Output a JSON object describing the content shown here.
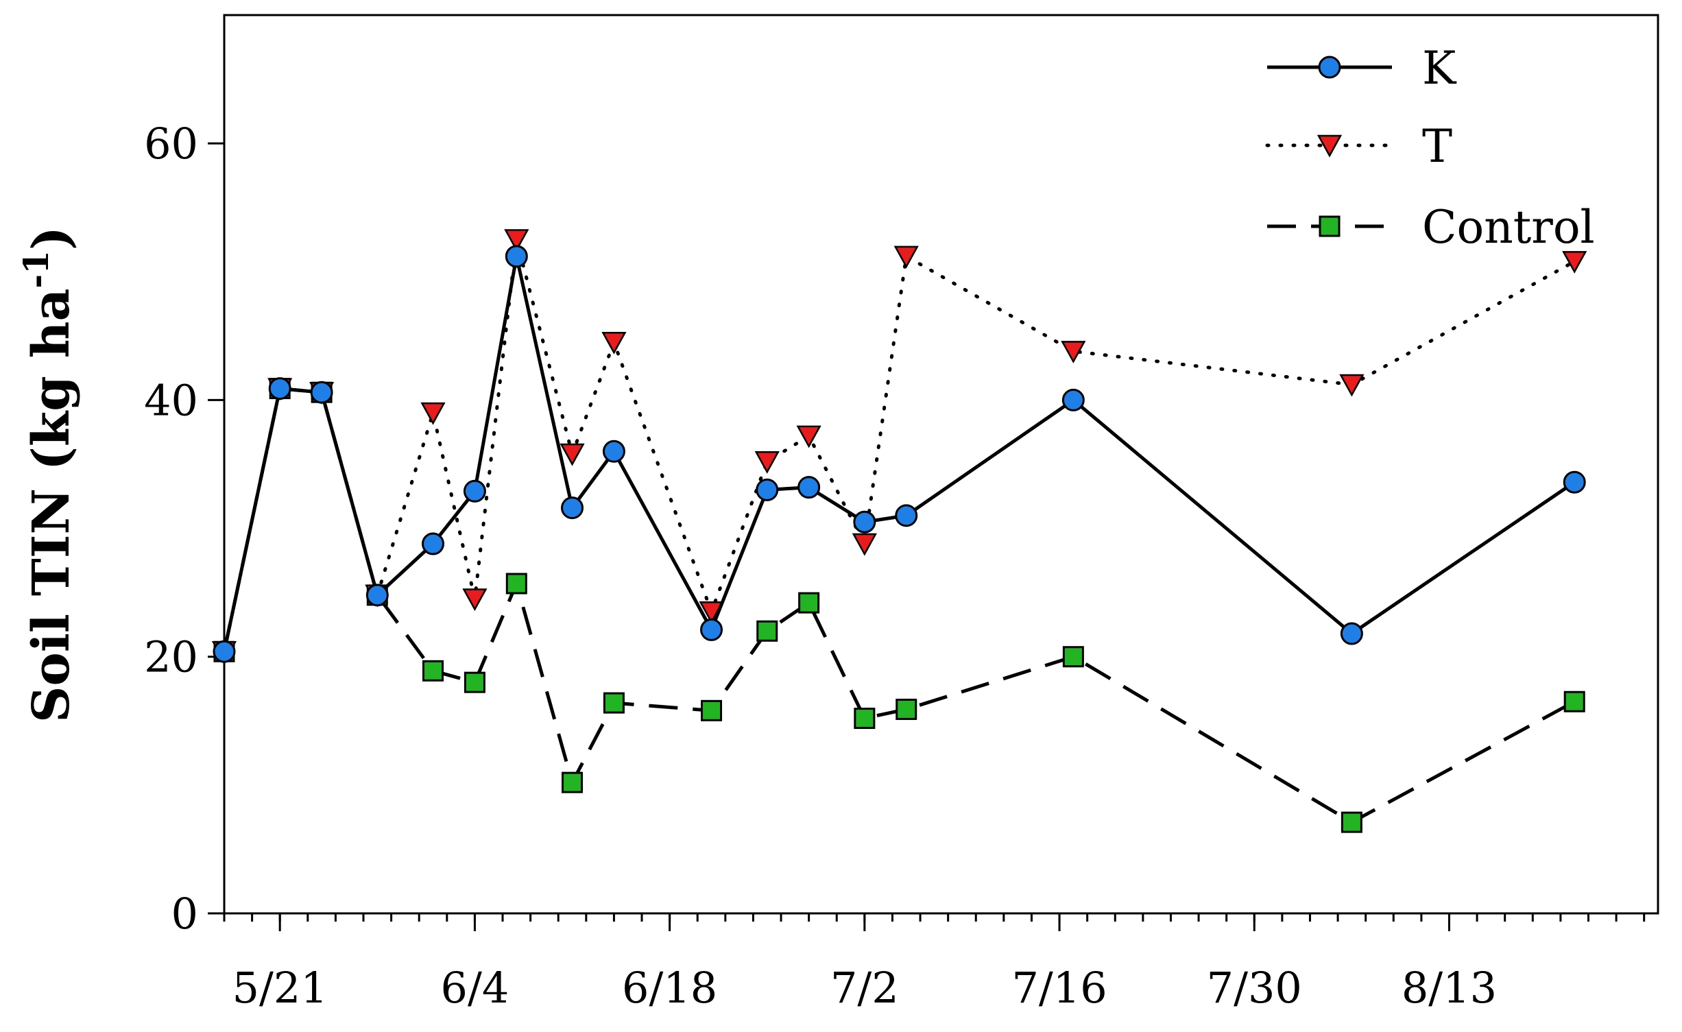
{
  "chart_data": {
    "type": "line",
    "year": 2001,
    "ylabel": {
      "main": "Soil TIN (kg ha",
      "superscript": "-1",
      "close": ")"
    },
    "xlabel": "",
    "ylim": [
      0,
      70
    ],
    "yticks": [
      0,
      20,
      40,
      60
    ],
    "xlim": [
      "2001-05-17",
      "2001-08-28"
    ],
    "xticks": [
      {
        "label": "5/21",
        "date": "2001-05-21"
      },
      {
        "label": "6/4",
        "date": "2001-06-04"
      },
      {
        "label": "6/18",
        "date": "2001-06-18"
      },
      {
        "label": "7/2",
        "date": "2001-07-02"
      },
      {
        "label": "7/16",
        "date": "2001-07-16"
      },
      {
        "label": "7/30",
        "date": "2001-07-30"
      },
      {
        "label": "8/13",
        "date": "2001-08-13"
      }
    ],
    "grid": false,
    "legend": "top-right",
    "series": [
      {
        "name": "K",
        "style": "solid",
        "marker": "circle",
        "color": "#1f7fe6",
        "points": [
          {
            "x": "2001-05-17",
            "y": 20.4
          },
          {
            "x": "2001-05-21",
            "y": 40.9
          },
          {
            "x": "2001-05-24",
            "y": 40.6
          },
          {
            "x": "2001-05-28",
            "y": 24.8
          },
          {
            "x": "2001-06-01",
            "y": 28.8
          },
          {
            "x": "2001-06-04",
            "y": 32.9
          },
          {
            "x": "2001-06-07",
            "y": 51.2
          },
          {
            "x": "2001-06-11",
            "y": 31.6
          },
          {
            "x": "2001-06-14",
            "y": 36.0
          },
          {
            "x": "2001-06-21",
            "y": 22.1
          },
          {
            "x": "2001-06-25",
            "y": 33.0
          },
          {
            "x": "2001-06-28",
            "y": 33.2
          },
          {
            "x": "2001-07-02",
            "y": 30.5
          },
          {
            "x": "2001-07-05",
            "y": 31.0
          },
          {
            "x": "2001-07-17",
            "y": 40.0
          },
          {
            "x": "2001-08-06",
            "y": 21.8
          },
          {
            "x": "2001-08-22",
            "y": 33.6
          }
        ]
      },
      {
        "name": "T",
        "style": "dotted",
        "marker": "triangle-down",
        "color": "#e81c1c",
        "points": [
          {
            "x": "2001-05-17",
            "y": 20.4
          },
          {
            "x": "2001-05-21",
            "y": 40.9
          },
          {
            "x": "2001-05-24",
            "y": 40.6
          },
          {
            "x": "2001-05-28",
            "y": 24.8
          },
          {
            "x": "2001-06-01",
            "y": 39.0
          },
          {
            "x": "2001-06-04",
            "y": 24.5
          },
          {
            "x": "2001-06-07",
            "y": 52.5
          },
          {
            "x": "2001-06-11",
            "y": 35.8
          },
          {
            "x": "2001-06-14",
            "y": 44.5
          },
          {
            "x": "2001-06-21",
            "y": 23.5
          },
          {
            "x": "2001-06-25",
            "y": 35.2
          },
          {
            "x": "2001-06-28",
            "y": 37.2
          },
          {
            "x": "2001-07-02",
            "y": 28.8
          },
          {
            "x": "2001-07-05",
            "y": 51.2
          },
          {
            "x": "2001-07-17",
            "y": 43.8
          },
          {
            "x": "2001-08-06",
            "y": 41.2
          },
          {
            "x": "2001-08-22",
            "y": 50.8
          }
        ]
      },
      {
        "name": "Control",
        "style": "dashed",
        "marker": "square",
        "color": "#22b422",
        "points": [
          {
            "x": "2001-05-17",
            "y": 20.4
          },
          {
            "x": "2001-05-21",
            "y": 40.9
          },
          {
            "x": "2001-05-24",
            "y": 40.6
          },
          {
            "x": "2001-05-28",
            "y": 24.8
          },
          {
            "x": "2001-06-01",
            "y": 18.9
          },
          {
            "x": "2001-06-04",
            "y": 18.0
          },
          {
            "x": "2001-06-07",
            "y": 25.7
          },
          {
            "x": "2001-06-11",
            "y": 10.2
          },
          {
            "x": "2001-06-14",
            "y": 16.4
          },
          {
            "x": "2001-06-21",
            "y": 15.8
          },
          {
            "x": "2001-06-25",
            "y": 22.0
          },
          {
            "x": "2001-06-28",
            "y": 24.2
          },
          {
            "x": "2001-07-02",
            "y": 15.2
          },
          {
            "x": "2001-07-05",
            "y": 15.9
          },
          {
            "x": "2001-07-17",
            "y": 20.0
          },
          {
            "x": "2001-08-06",
            "y": 7.1
          },
          {
            "x": "2001-08-22",
            "y": 16.5
          }
        ]
      }
    ]
  }
}
